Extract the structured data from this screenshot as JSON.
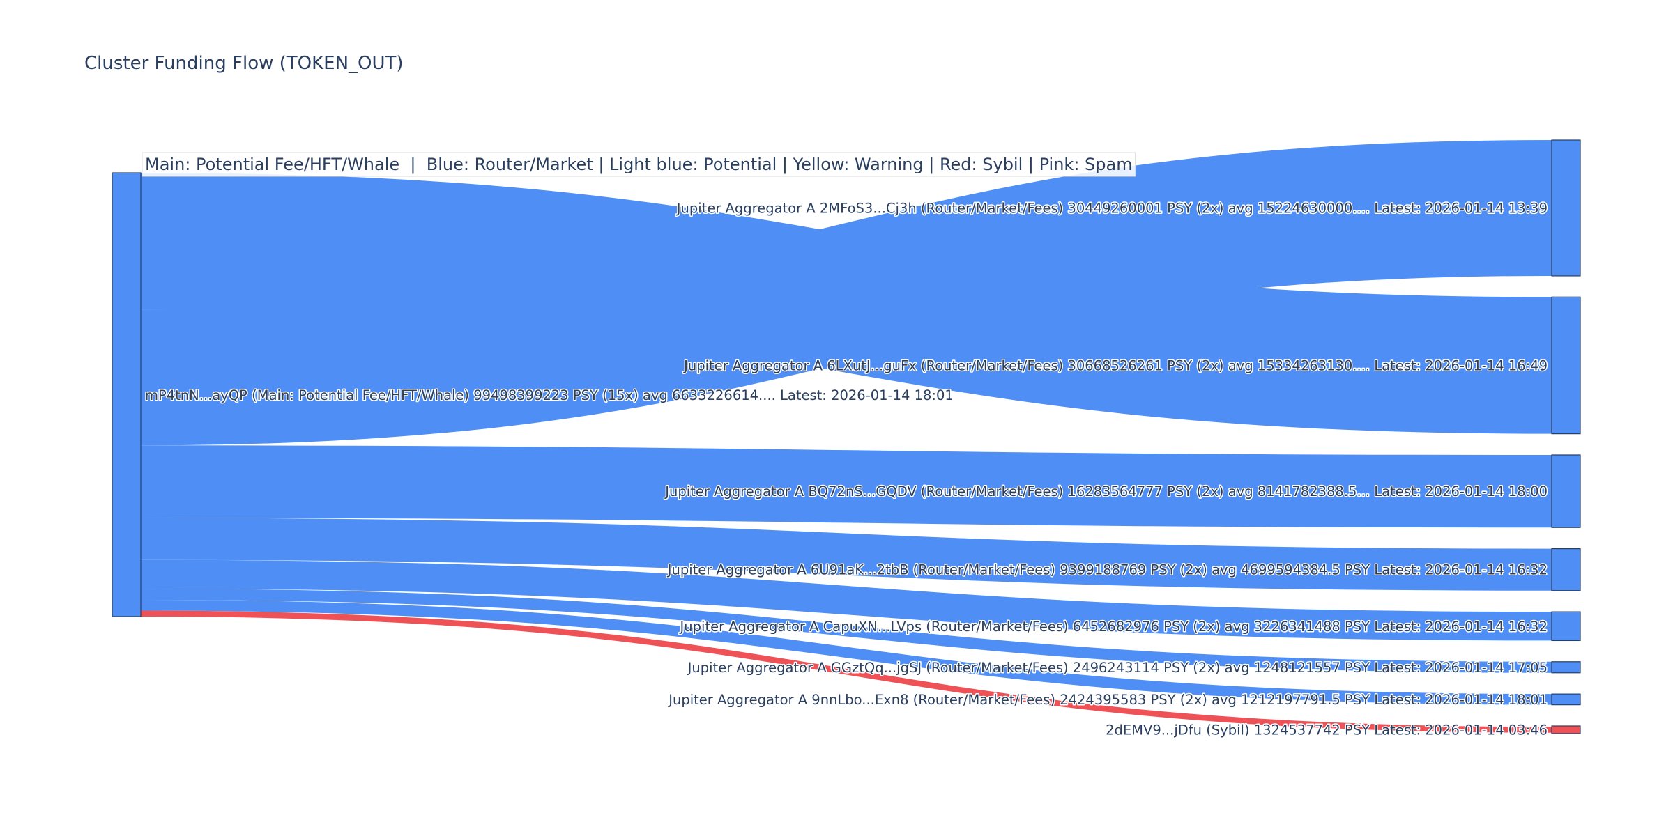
{
  "chart_data": {
    "type": "sankey",
    "title": "Cluster Funding Flow (TOKEN_OUT)",
    "legend_note": "Main: Potential Fee/HFT/Whale  |  Blue: Router/Market | Light blue: Potential | Yellow: Warning | Red: Sybil | Pink: Spam",
    "colors": {
      "router": "#4f8ef5",
      "sybil": "#ef5256",
      "main": "#4f8ef5"
    },
    "source": {
      "label": "mP4tnN...ayQP (Main: Potential Fee/HFT/Whale) 99498399223 PSY (15x) avg 6633226614.... Latest: 2026-01-14 18:01",
      "value": 99498399223,
      "category": "main"
    },
    "targets": [
      {
        "label": "Jupiter Aggregator A 2MFoS3...Cj3h (Router/Market/Fees) 30449260001 PSY (2x) avg 15224630000.... Latest: 2026-01-14 13:39",
        "value": 30449260001,
        "category": "router"
      },
      {
        "label": "Jupiter Aggregator A 6LXutJ...guFx (Router/Market/Fees) 30668526261 PSY (2x) avg 15334263130.... Latest: 2026-01-14 16:49",
        "value": 30668526261,
        "category": "router"
      },
      {
        "label": "Jupiter Aggregator A BQ72nS...GQDV (Router/Market/Fees) 16283564777 PSY (2x) avg 8141782388.5... Latest: 2026-01-14 18:00",
        "value": 16283564777,
        "category": "router"
      },
      {
        "label": "Jupiter Aggregator A 6U91aK...2tbB (Router/Market/Fees) 9399188769 PSY (2x) avg 4699594384.5 PSY Latest: 2026-01-14 16:32",
        "value": 9399188769,
        "category": "router"
      },
      {
        "label": "Jupiter Aggregator A CapuXN...LVps (Router/Market/Fees) 6452682976 PSY (2x) avg 3226341488 PSY Latest: 2026-01-14 16:32",
        "value": 6452682976,
        "category": "router"
      },
      {
        "label": "Jupiter Aggregator A GGztQq...jgSJ (Router/Market/Fees) 2496243114 PSY (2x) avg 1248121557 PSY Latest: 2026-01-14 17:05",
        "value": 2496243114,
        "category": "router"
      },
      {
        "label": "Jupiter Aggregator A 9nnLbo...Exn8 (Router/Market/Fees) 2424395583 PSY (2x) avg 1212197791.5 PSY Latest: 2026-01-14 18:01",
        "value": 2424395583,
        "category": "router"
      },
      {
        "label": "2dEMV9...jDfu (Sybil) 1324537742 PSY Latest: 2026-01-14 03:46",
        "value": 1324537742,
        "category": "sybil"
      }
    ],
    "link_order_from_source": [
      1,
      0,
      2,
      3,
      4,
      5,
      6,
      7
    ]
  }
}
